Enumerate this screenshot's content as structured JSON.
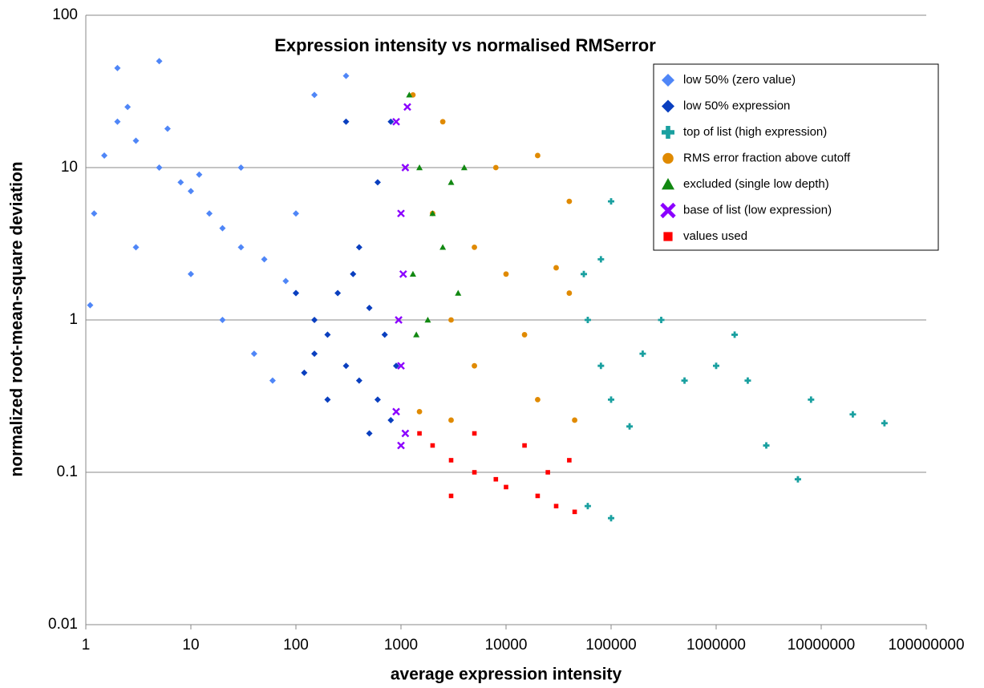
{
  "chart_data": {
    "type": "scatter",
    "title": "Expression intensity vs normalised RMSerror",
    "x_label": "average expression intensity",
    "y_label": "normalized root-mean-square deviation",
    "log_x": true,
    "log_y": true,
    "grid": true,
    "legend": "upper right",
    "xlim": [
      1,
      100000000
    ],
    "ylim": [
      0.01,
      100
    ],
    "xticks": [
      1,
      10,
      100,
      1000,
      10000,
      100000,
      1000000,
      10000000,
      100000000
    ],
    "yticks": [
      0.01,
      0.1,
      1,
      10,
      100
    ],
    "series": [
      {
        "name": "low 50% (zero value)",
        "color": "#4f86f7",
        "marker": "diamond",
        "x": [
          1.5,
          2,
          3,
          5,
          8,
          10,
          15,
          20,
          30,
          50,
          80,
          100,
          2,
          5,
          1.2,
          3,
          10,
          20,
          40,
          60,
          150,
          300,
          30,
          100,
          1.1,
          2.5,
          6,
          12
        ],
        "values": [
          12,
          20,
          15,
          10,
          8,
          7,
          5,
          4,
          3,
          2.5,
          1.8,
          1.5,
          45,
          50,
          5,
          3,
          2,
          1,
          0.6,
          0.4,
          30,
          40,
          10,
          5,
          1.25,
          25,
          18,
          9
        ]
      },
      {
        "name": "low 50% expression",
        "color": "#0a3fbf",
        "marker": "diamond",
        "x": [
          100,
          150,
          200,
          300,
          400,
          600,
          800,
          150,
          250,
          500,
          700,
          900,
          400,
          600,
          800,
          300,
          500,
          200,
          120,
          350
        ],
        "values": [
          1.5,
          1,
          0.8,
          0.5,
          0.4,
          0.3,
          0.22,
          0.6,
          1.5,
          1.2,
          0.8,
          0.5,
          3,
          8,
          20,
          20,
          0.18,
          0.3,
          0.45,
          2
        ]
      },
      {
        "name": "top of list (high expression)",
        "color": "#1aa0a0",
        "marker": "plus",
        "x": [
          55000,
          60000,
          80000,
          100000,
          150000,
          200000,
          500000,
          1000000,
          2000000,
          3000000,
          6000000,
          20000000,
          40000000,
          100000,
          100000,
          80000,
          60000,
          300000,
          1500000,
          8000000
        ],
        "values": [
          2,
          1,
          0.5,
          0.3,
          0.2,
          0.6,
          0.4,
          0.5,
          0.4,
          0.15,
          0.09,
          0.24,
          0.21,
          0.05,
          6,
          2.5,
          0.06,
          1,
          0.8,
          0.3
        ]
      },
      {
        "name": "RMS error fraction above cutoff",
        "color": "#e08a00",
        "marker": "circle",
        "x": [
          1300,
          2000,
          3000,
          5000,
          10000,
          20000,
          40000,
          8000,
          20000,
          40000,
          1500,
          3000,
          15000,
          45000,
          30000,
          2500,
          5000
        ],
        "values": [
          30,
          5,
          1,
          0.5,
          2,
          0.3,
          1.5,
          10,
          12,
          6,
          0.25,
          0.22,
          0.8,
          0.22,
          2.2,
          20,
          3
        ]
      },
      {
        "name": "excluded (single low depth)",
        "color": "#118811",
        "marker": "triangle",
        "x": [
          1200,
          1500,
          2000,
          1300,
          1800,
          2500,
          3000,
          1400,
          3500,
          4000
        ],
        "values": [
          30,
          10,
          5,
          2,
          1,
          3,
          8,
          0.8,
          1.5,
          10
        ]
      },
      {
        "name": "base of list (low expression)",
        "color": "#8b00ff",
        "marker": "cross",
        "x": [
          900,
          1000,
          950,
          1050,
          1000,
          1100,
          900,
          1150,
          1000,
          1100
        ],
        "values": [
          0.25,
          0.5,
          1,
          2,
          5,
          10,
          20,
          25,
          0.15,
          0.18
        ]
      },
      {
        "name": "values used",
        "color": "#ff0000",
        "marker": "square",
        "x": [
          1500,
          2000,
          3000,
          5000,
          8000,
          10000,
          20000,
          30000,
          45000,
          15000,
          40000,
          5000,
          25000,
          3000
        ],
        "values": [
          0.18,
          0.15,
          0.12,
          0.1,
          0.09,
          0.08,
          0.07,
          0.06,
          0.055,
          0.15,
          0.12,
          0.18,
          0.1,
          0.07
        ]
      }
    ]
  }
}
